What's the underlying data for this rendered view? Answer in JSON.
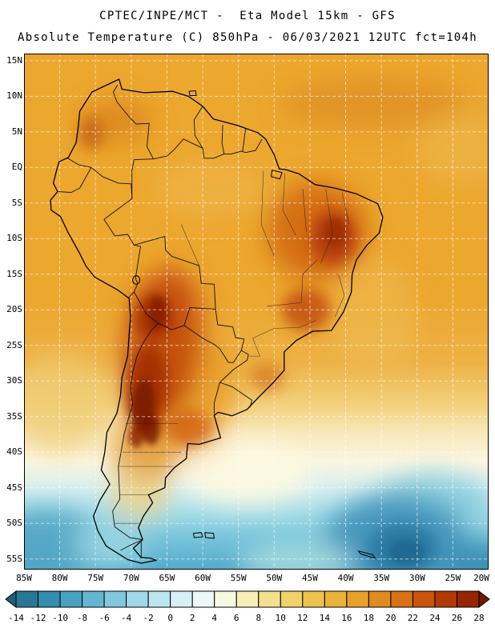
{
  "header": {
    "line1": "CPTEC/INPE/MCT -  Eta Model 15km - GFS",
    "line2": "Absolute Temperature (C) 850hPa - 06/03/2021 12UTC fct=104h"
  },
  "map": {
    "region": "South America",
    "lat_ticks": [
      "15N",
      "10N",
      "5N",
      "EQ",
      "5S",
      "10S",
      "15S",
      "20S",
      "25S",
      "30S",
      "35S",
      "40S",
      "45S",
      "50S",
      "55S"
    ],
    "lat_values": [
      15,
      10,
      5,
      0,
      -5,
      -10,
      -15,
      -20,
      -25,
      -30,
      -35,
      -40,
      -45,
      -50,
      -55
    ],
    "lon_ticks": [
      "85W",
      "80W",
      "75W",
      "70W",
      "65W",
      "60W",
      "55W",
      "50W",
      "45W",
      "40W",
      "35W",
      "30W",
      "25W",
      "20W"
    ],
    "lon_values": [
      -85,
      -80,
      -75,
      -70,
      -65,
      -60,
      -55,
      -50,
      -45,
      -40,
      -35,
      -30,
      -25,
      -20
    ]
  },
  "colorbar": {
    "unit": "C",
    "tick_labels": [
      "-14",
      "-12",
      "-10",
      "-8",
      "-6",
      "-4",
      "-2",
      "0",
      "2",
      "4",
      "6",
      "8",
      "10",
      "12",
      "14",
      "16",
      "18",
      "20",
      "22",
      "24",
      "26",
      "28"
    ],
    "colors": [
      "#20607e",
      "#2a7795",
      "#338dac",
      "#47a2bf",
      "#63b6cf",
      "#82c8dc",
      "#a0d8e7",
      "#bce6ef",
      "#d6f0f5",
      "#ebf8f7",
      "#f6f9e0",
      "#f6eeb7",
      "#f2e08e",
      "#efd26a",
      "#edc24e",
      "#eab238",
      "#e7a02b",
      "#e18a1f",
      "#d97115",
      "#c9540d",
      "#b23a07",
      "#952603",
      "#741702"
    ]
  },
  "chart_data": {
    "type": "heatmap",
    "title": "Absolute Temperature (C) 850hPa",
    "source": "CPTEC/INPE/MCT",
    "model": "Eta Model 15km - GFS",
    "valid_time": "06/03/2021 12UTC",
    "forecast": "fct=104h",
    "lon_range": [
      "85W",
      "20W"
    ],
    "lat_range": [
      "15N",
      "55S"
    ],
    "scale_celsius_min": -14,
    "scale_celsius_max": 28,
    "scale_step": 2
  }
}
